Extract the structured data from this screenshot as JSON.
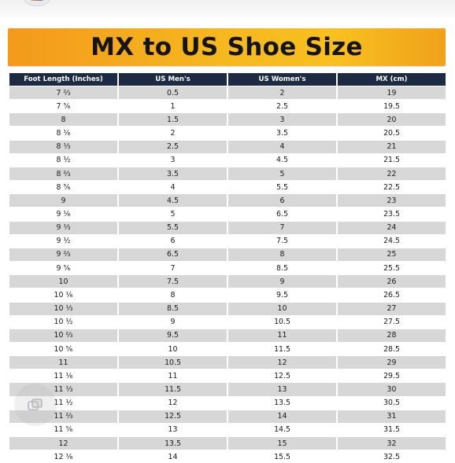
{
  "title": "MX to US Shoe Size",
  "table": {
    "headers": [
      "Foot Length (Inches)",
      "US Men's",
      "US Women's",
      "MX (cm)"
    ],
    "rows": [
      [
        "7 ⅔",
        "0.5",
        "2",
        "19"
      ],
      [
        "7 ⅚",
        "1",
        "2.5",
        "19.5"
      ],
      [
        "8",
        "1.5",
        "3",
        "20"
      ],
      [
        "8 ⅙",
        "2",
        "3.5",
        "20.5"
      ],
      [
        "8 ⅓",
        "2.5",
        "4",
        "21"
      ],
      [
        "8 ½",
        "3",
        "4.5",
        "21.5"
      ],
      [
        "8 ⅔",
        "3.5",
        "5",
        "22"
      ],
      [
        "8 ⅚",
        "4",
        "5.5",
        "22.5"
      ],
      [
        "9",
        "4.5",
        "6",
        "23"
      ],
      [
        "9 ⅙",
        "5",
        "6.5",
        "23.5"
      ],
      [
        "9 ⅓",
        "5.5",
        "7",
        "24"
      ],
      [
        "9 ½",
        "6",
        "7.5",
        "24.5"
      ],
      [
        "9 ⅔",
        "6.5",
        "8",
        "25"
      ],
      [
        "9 ⅚",
        "7",
        "8.5",
        "25.5"
      ],
      [
        "10",
        "7.5",
        "9",
        "26"
      ],
      [
        "10 ⅙",
        "8",
        "9.5",
        "26.5"
      ],
      [
        "10 ⅓",
        "8.5",
        "10",
        "27"
      ],
      [
        "10 ½",
        "9",
        "10.5",
        "27.5"
      ],
      [
        "10 ⅔",
        "9.5",
        "11",
        "28"
      ],
      [
        "10 ⅚",
        "10",
        "11.5",
        "28.5"
      ],
      [
        "11",
        "10.5",
        "12",
        "29"
      ],
      [
        "11 ⅙",
        "11",
        "12.5",
        "29.5"
      ],
      [
        "11 ⅓",
        "11.5",
        "13",
        "30"
      ],
      [
        "11 ½",
        "12",
        "13.5",
        "30.5"
      ],
      [
        "11 ⅔",
        "12.5",
        "14",
        "31"
      ],
      [
        "11 ⅚",
        "13",
        "14.5",
        "31.5"
      ],
      [
        "12",
        "13.5",
        "15",
        "32"
      ],
      [
        "12 ⅙",
        "14",
        "15.5",
        "32.5"
      ]
    ]
  },
  "colors": {
    "banner_start": "#f39a1c",
    "banner_end": "#f8c01f",
    "header_bg": "#1d2a44",
    "row_shade": "#d7d7d7"
  },
  "icons": {
    "overlay": "copy-icon"
  }
}
